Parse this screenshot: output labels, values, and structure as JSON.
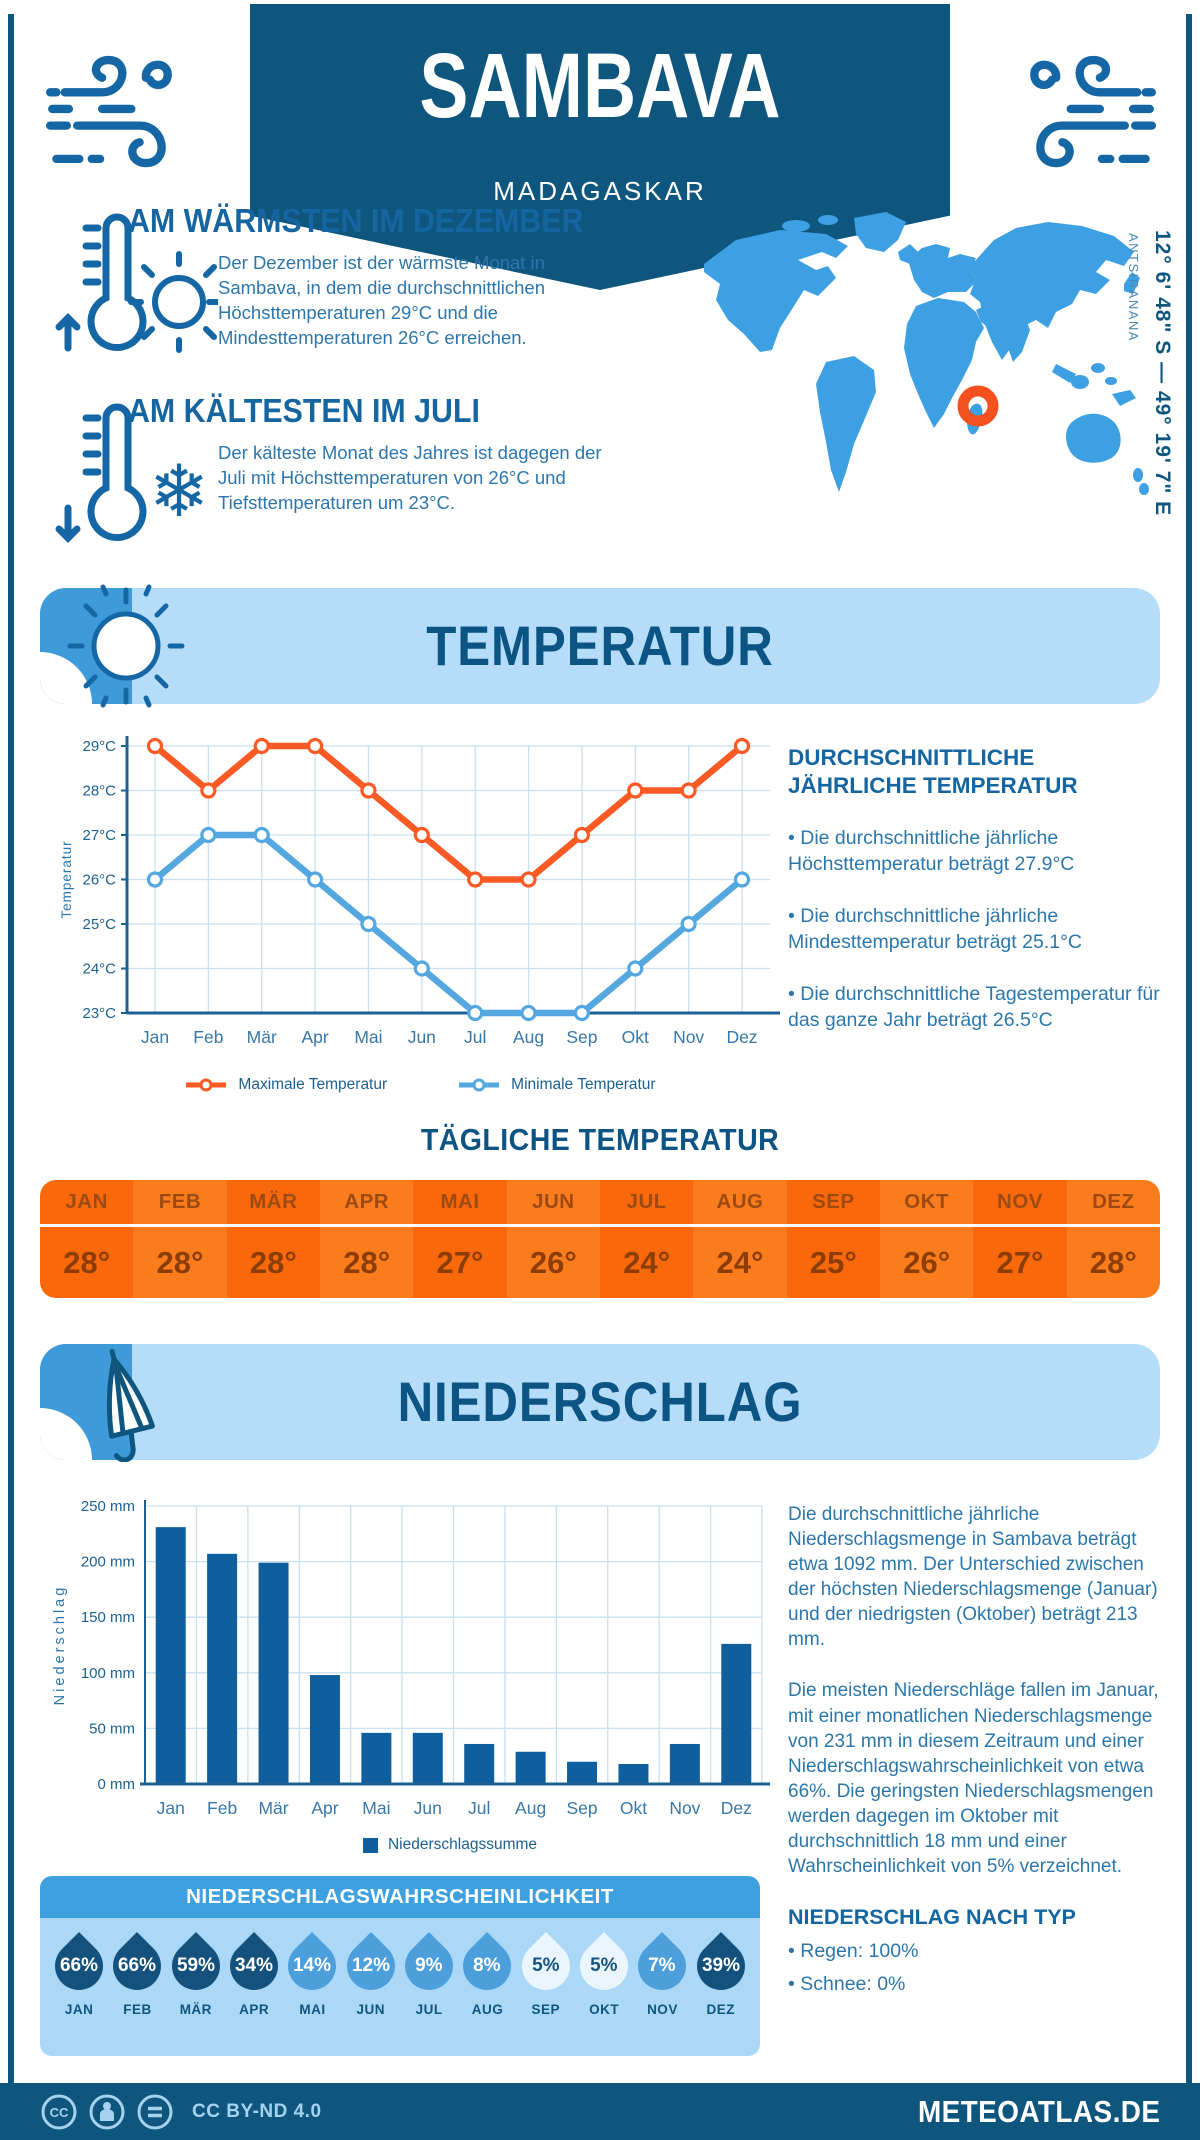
{
  "header": {
    "city": "SAMBAVA",
    "country": "MADAGASKAR"
  },
  "map": {
    "coordinates": "12° 6' 48\" S — 49° 19' 7\" E",
    "region": "ANTSIRANANA"
  },
  "warmest": {
    "title": "AM WÄRMSTEN IM DEZEMBER",
    "text": "Der Dezember ist der wärmste Monat in Sambava, in dem die durchschnittlichen Höchsttemperaturen 29°C und die Mindesttemperaturen 26°C erreichen."
  },
  "coldest": {
    "title": "AM KÄLTESTEN IM JULI",
    "text": "Der kälteste Monat des Jahres ist dagegen der Juli mit Höchsttemperaturen von 26°C und Tiefsttemperaturen um 23°C."
  },
  "temperature_section": {
    "title": "TEMPERATUR",
    "annual": {
      "title": "DURCHSCHNITTLICHE JÄHRLICHE TEMPERATUR",
      "bullets": [
        "• Die durchschnittliche jährliche Höchsttemperatur beträgt 27.9°C",
        "• Die durchschnittliche jährliche Mindesttemperatur beträgt 25.1°C",
        "• Die durchschnittliche Tagestemperatur für das ganze Jahr beträgt 26.5°C"
      ]
    },
    "daily": {
      "title": "TÄGLICHE TEMPERATUR",
      "months": [
        "JAN",
        "FEB",
        "MÄR",
        "APR",
        "MAI",
        "JUN",
        "JUL",
        "AUG",
        "SEP",
        "OKT",
        "NOV",
        "DEZ"
      ],
      "values": [
        "28°",
        "28°",
        "28°",
        "28°",
        "27°",
        "26°",
        "24°",
        "24°",
        "25°",
        "26°",
        "27°",
        "28°"
      ]
    }
  },
  "precipitation_section": {
    "title": "NIEDERSCHLAG",
    "paragraphs": [
      "Die durchschnittliche jährliche Niederschlagsmenge in Sambava beträgt etwa 1092 mm. Der Unterschied zwischen der höchsten Niederschlagsmenge (Januar) und der niedrigsten (Oktober) beträgt 213 mm.",
      "Die meisten Niederschläge fallen im Januar, mit einer monatlichen Niederschlagsmenge von 231 mm in diesem Zeitraum und einer Niederschlagswahrscheinlichkeit von etwa 66%. Die geringsten Niederschlagsmengen werden dagegen im Oktober mit durchschnittlich 18 mm und einer Wahrscheinlichkeit von 5% verzeichnet."
    ],
    "by_type": {
      "title": "NIEDERSCHLAG NACH TYP",
      "bullets": [
        "• Regen: 100%",
        "• Schnee: 0%"
      ]
    },
    "probability": {
      "title": "NIEDERSCHLAGSWAHRSCHEINLICHKEIT",
      "months": [
        "JAN",
        "FEB",
        "MÄR",
        "APR",
        "MAI",
        "JUN",
        "JUL",
        "AUG",
        "SEP",
        "OKT",
        "NOV",
        "DEZ"
      ],
      "values": [
        66,
        66,
        59,
        34,
        14,
        12,
        9,
        8,
        5,
        5,
        7,
        39
      ],
      "suffix": "%"
    }
  },
  "footer": {
    "license": "CC BY-ND 4.0",
    "brand": "METEOATLAS.DE"
  },
  "chart_data": [
    {
      "type": "line",
      "categories": [
        "Jan",
        "Feb",
        "Mär",
        "Apr",
        "Mai",
        "Jun",
        "Jul",
        "Aug",
        "Sep",
        "Okt",
        "Nov",
        "Dez"
      ],
      "series": [
        {
          "name": "Maximale Temperatur",
          "color": "#FB5A25",
          "values": [
            29,
            28,
            29,
            29,
            28,
            27,
            26,
            26,
            27,
            28,
            28,
            29
          ]
        },
        {
          "name": "Minimale Temperatur",
          "color": "#55A7E0",
          "values": [
            26,
            27,
            27,
            26,
            25,
            24,
            23,
            23,
            23,
            24,
            25,
            26
          ]
        }
      ],
      "ylabel": "Temperatur",
      "xlabel": "",
      "ylim": [
        23,
        29
      ],
      "ytick_step": 1,
      "ytick_suffix": "°C",
      "grid": true,
      "legend_position": "bottom"
    },
    {
      "type": "bar",
      "categories": [
        "Jan",
        "Feb",
        "Mär",
        "Apr",
        "Mai",
        "Jun",
        "Jul",
        "Aug",
        "Sep",
        "Okt",
        "Nov",
        "Dez"
      ],
      "values": [
        231,
        207,
        199,
        98,
        46,
        46,
        36,
        29,
        20,
        18,
        36,
        126
      ],
      "series_name": "Niederschlagssumme",
      "color": "#0F5F9E",
      "ylabel": "Niederschlag",
      "xlabel": "",
      "ylim": [
        0,
        250
      ],
      "ytick_step": 50,
      "ytick_suffix": " mm",
      "grid": true,
      "legend_position": "bottom"
    }
  ],
  "colors": {
    "navy": "#0E567E",
    "heading_blue": "#1566A0",
    "body_blue": "#2B77AB",
    "banner_light": "#B5DCF8",
    "banner_cap": "#3E9AD8",
    "map_blue": "#3DA0E2",
    "marker_orange": "#F4511E",
    "grid_line": "#C9E0F1",
    "axis_blue": "#1D6190",
    "xlabel_blue": "#3878A8",
    "table_col_a": "#F9690B",
    "table_col_b": "#FB7C1D",
    "table_month_text": "#9D4912",
    "table_value_text": "#8B3D05",
    "droplet_dark": "#14527D",
    "droplet_mid": "#4D9FDB",
    "droplet_light": "#EBF5FD",
    "droplet_light_text": "#17557F",
    "prob_header": "#3FA0DF",
    "prob_body": "#ABD8F6",
    "footer_text": "#A5D2EF"
  }
}
